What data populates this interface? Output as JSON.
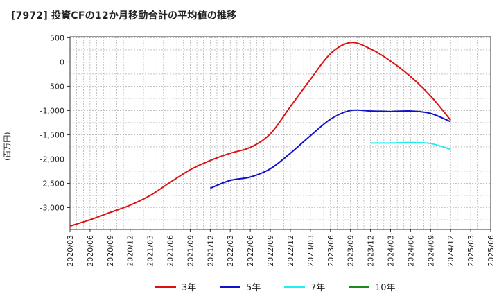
{
  "chart_data": {
    "type": "line",
    "title": "[7972]  投資CFの12か月移動合計の平均値の推移",
    "ylabel": "(百万円)",
    "xlabel": "",
    "ylim": [
      -3450,
      520
    ],
    "yticks": [
      500,
      0,
      -500,
      -1000,
      -1500,
      -2000,
      -2500,
      -3000
    ],
    "ytick_labels": [
      "500",
      "0",
      "-500",
      "-1,000",
      "-1,500",
      "-2,000",
      "-2,500",
      "-3,000"
    ],
    "x": [
      "2020/03",
      "2020/06",
      "2020/09",
      "2020/12",
      "2021/03",
      "2021/06",
      "2021/09",
      "2021/12",
      "2022/03",
      "2022/06",
      "2022/09",
      "2022/12",
      "2023/03",
      "2023/06",
      "2023/09",
      "2023/12",
      "2024/03",
      "2024/06",
      "2024/09",
      "2024/12",
      "2025/03",
      "2025/06"
    ],
    "grid": true,
    "legend_position": "bottom",
    "series": [
      {
        "name": "3年",
        "color": "#dd1111",
        "values": [
          -3380,
          -3250,
          -3100,
          -2950,
          -2750,
          -2480,
          -2220,
          -2030,
          -1880,
          -1760,
          -1480,
          -920,
          -360,
          170,
          400,
          270,
          20,
          -300,
          -700,
          -1200,
          null,
          null
        ]
      },
      {
        "name": "5年",
        "color": "#1111cc",
        "values": [
          null,
          null,
          null,
          null,
          null,
          null,
          null,
          -2600,
          -2440,
          -2370,
          -2200,
          -1880,
          -1520,
          -1180,
          -1000,
          -1010,
          -1020,
          -1010,
          -1060,
          -1230,
          null,
          null
        ]
      },
      {
        "name": "7年",
        "color": "#22eeee",
        "values": [
          null,
          null,
          null,
          null,
          null,
          null,
          null,
          null,
          null,
          null,
          null,
          null,
          null,
          null,
          null,
          -1670,
          -1670,
          -1660,
          -1680,
          -1800,
          null,
          null
        ]
      },
      {
        "name": "10年",
        "color": "#228822",
        "values": [
          null,
          null,
          null,
          null,
          null,
          null,
          null,
          null,
          null,
          null,
          null,
          null,
          null,
          null,
          null,
          null,
          null,
          null,
          null,
          null,
          null,
          null
        ]
      }
    ]
  }
}
